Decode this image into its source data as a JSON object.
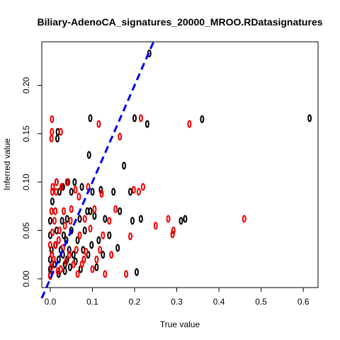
{
  "chart_data": {
    "type": "scatter",
    "title": "Biliary-AdenoCA_signatures_20000_MROO.RDatasignatures",
    "xlabel": "True value",
    "ylabel": "Inferred value",
    "xlim": [
      -0.02,
      0.635
    ],
    "ylim": [
      -0.009,
      0.245
    ],
    "xticks": [
      "0.0",
      "0.1",
      "0.2",
      "0.3",
      "0.4",
      "0.5",
      "0.6"
    ],
    "yticks": [
      "0.00",
      "0.05",
      "0.10",
      "0.15",
      "0.20"
    ],
    "grid": false,
    "reference_line": {
      "slope": 1,
      "intercept": 0,
      "color": "#0000ee",
      "style": "dashed"
    },
    "series": [
      {
        "color": "#000000",
        "points": [
          [
            0.0,
            0.004
          ],
          [
            0.0,
            0.01
          ],
          [
            0.0,
            0.02
          ],
          [
            0.003,
            0.03
          ],
          [
            0.0,
            0.045
          ],
          [
            0.0,
            0.06
          ],
          [
            0.005,
            0.08
          ],
          [
            0.006,
            0.095
          ],
          [
            0.01,
            0.015
          ],
          [
            0.012,
            0.035
          ],
          [
            0.015,
            0.05
          ],
          [
            0.015,
            0.1
          ],
          [
            0.017,
            0.145
          ],
          [
            0.018,
            0.152
          ],
          [
            0.02,
            0.005
          ],
          [
            0.02,
            0.02
          ],
          [
            0.022,
            0.09
          ],
          [
            0.025,
            0.03
          ],
          [
            0.028,
            0.06
          ],
          [
            0.03,
            0.025
          ],
          [
            0.03,
            0.095
          ],
          [
            0.032,
            0.045
          ],
          [
            0.035,
            0.008
          ],
          [
            0.035,
            0.015
          ],
          [
            0.038,
            0.04
          ],
          [
            0.04,
            0.02
          ],
          [
            0.04,
            0.062
          ],
          [
            0.042,
            0.1
          ],
          [
            0.045,
            0.03
          ],
          [
            0.047,
            0.012
          ],
          [
            0.05,
            0.05
          ],
          [
            0.05,
            0.09
          ],
          [
            0.055,
            0.025
          ],
          [
            0.058,
            0.1
          ],
          [
            0.06,
            0.018
          ],
          [
            0.065,
            0.04
          ],
          [
            0.07,
            0.062
          ],
          [
            0.072,
            0.01
          ],
          [
            0.075,
            0.095
          ],
          [
            0.078,
            0.03
          ],
          [
            0.08,
            0.02
          ],
          [
            0.082,
            0.05
          ],
          [
            0.088,
            0.07
          ],
          [
            0.09,
            0.025
          ],
          [
            0.092,
            0.128
          ],
          [
            0.095,
            0.166
          ],
          [
            0.095,
            0.07
          ],
          [
            0.098,
            0.035
          ],
          [
            0.1,
            0.09
          ],
          [
            0.105,
            0.065
          ],
          [
            0.11,
            0.012
          ],
          [
            0.115,
            0.04
          ],
          [
            0.12,
            0.092
          ],
          [
            0.125,
            0.025
          ],
          [
            0.13,
            0.062
          ],
          [
            0.14,
            0.045
          ],
          [
            0.15,
            0.09
          ],
          [
            0.16,
            0.032
          ],
          [
            0.165,
            0.07
          ],
          [
            0.175,
            0.117
          ],
          [
            0.19,
            0.09
          ],
          [
            0.195,
            0.06
          ],
          [
            0.2,
            0.166
          ],
          [
            0.205,
            0.007
          ],
          [
            0.215,
            0.062
          ],
          [
            0.23,
            0.16
          ],
          [
            0.235,
            0.233
          ],
          [
            0.31,
            0.06
          ],
          [
            0.32,
            0.062
          ],
          [
            0.36,
            0.165
          ],
          [
            0.615,
            0.166
          ]
        ]
      },
      {
        "color": "#ee0000",
        "points": [
          [
            0.0,
            0.003
          ],
          [
            0.002,
            0.012
          ],
          [
            0.004,
            0.025
          ],
          [
            0.0,
            0.035
          ],
          [
            0.005,
            0.048
          ],
          [
            0.003,
            0.07
          ],
          [
            0.005,
            0.09
          ],
          [
            0.006,
            0.095
          ],
          [
            0.003,
            0.145
          ],
          [
            0.004,
            0.152
          ],
          [
            0.004,
            0.165
          ],
          [
            0.008,
            0.02
          ],
          [
            0.01,
            0.06
          ],
          [
            0.012,
            0.07
          ],
          [
            0.013,
            0.035
          ],
          [
            0.014,
            0.09
          ],
          [
            0.015,
            0.1
          ],
          [
            0.018,
            0.008
          ],
          [
            0.02,
            0.04
          ],
          [
            0.022,
            0.05
          ],
          [
            0.025,
            0.01
          ],
          [
            0.025,
            0.152
          ],
          [
            0.027,
            0.095
          ],
          [
            0.03,
            0.032
          ],
          [
            0.032,
            0.07
          ],
          [
            0.035,
            0.055
          ],
          [
            0.038,
            0.018
          ],
          [
            0.04,
            0.1
          ],
          [
            0.045,
            0.025
          ],
          [
            0.048,
            0.06
          ],
          [
            0.05,
            0.072
          ],
          [
            0.055,
            0.015
          ],
          [
            0.06,
            0.092
          ],
          [
            0.062,
            0.03
          ],
          [
            0.065,
            0.005
          ],
          [
            0.068,
            0.085
          ],
          [
            0.07,
            0.045
          ],
          [
            0.075,
            0.015
          ],
          [
            0.08,
            0.02
          ],
          [
            0.082,
            0.062
          ],
          [
            0.085,
            0.028
          ],
          [
            0.09,
            0.095
          ],
          [
            0.095,
            0.052
          ],
          [
            0.1,
            0.01
          ],
          [
            0.105,
            0.072
          ],
          [
            0.11,
            0.02
          ],
          [
            0.115,
            0.16
          ],
          [
            0.118,
            0.03
          ],
          [
            0.122,
            0.088
          ],
          [
            0.125,
            0.045
          ],
          [
            0.13,
            0.005
          ],
          [
            0.14,
            0.06
          ],
          [
            0.145,
            0.025
          ],
          [
            0.155,
            0.072
          ],
          [
            0.165,
            0.147
          ],
          [
            0.18,
            0.005
          ],
          [
            0.19,
            0.044
          ],
          [
            0.198,
            0.092
          ],
          [
            0.21,
            0.09
          ],
          [
            0.215,
            0.166
          ],
          [
            0.22,
            0.095
          ],
          [
            0.25,
            0.055
          ],
          [
            0.28,
            0.062
          ],
          [
            0.29,
            0.046
          ],
          [
            0.292,
            0.05
          ],
          [
            0.33,
            0.16
          ],
          [
            0.46,
            0.062
          ]
        ]
      }
    ]
  }
}
